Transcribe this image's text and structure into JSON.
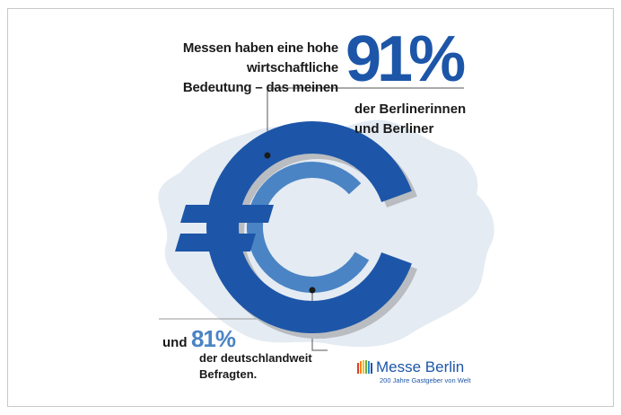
{
  "headline": {
    "line1": "Messen haben eine hohe",
    "line2": "wirtschaftliche",
    "line3": "Bedeutung – das meinen"
  },
  "stat_primary": {
    "value": "91%",
    "label_line1": "der Berlinerinnen",
    "label_line2": "und Berliner",
    "share": 0.91
  },
  "stat_secondary": {
    "prefix": "und",
    "value": "81%",
    "label_line1": "der deutschlandweit",
    "label_line2": "Befragten.",
    "share": 0.81
  },
  "brand": {
    "name": "Messe Berlin",
    "tagline": "200 Jahre Gastgeber von Welt"
  },
  "icons": {
    "main": "euro-sign-icon",
    "background": "berlin-map-silhouette-icon",
    "logo": "messe-berlin-logo-icon"
  },
  "colors": {
    "primary_blue": "#1d56a8",
    "secondary_blue": "#4a84c4",
    "map_gray": "#e4ebf3",
    "shadow_gray": "#b9bcc0",
    "text": "#1a1a1a"
  }
}
